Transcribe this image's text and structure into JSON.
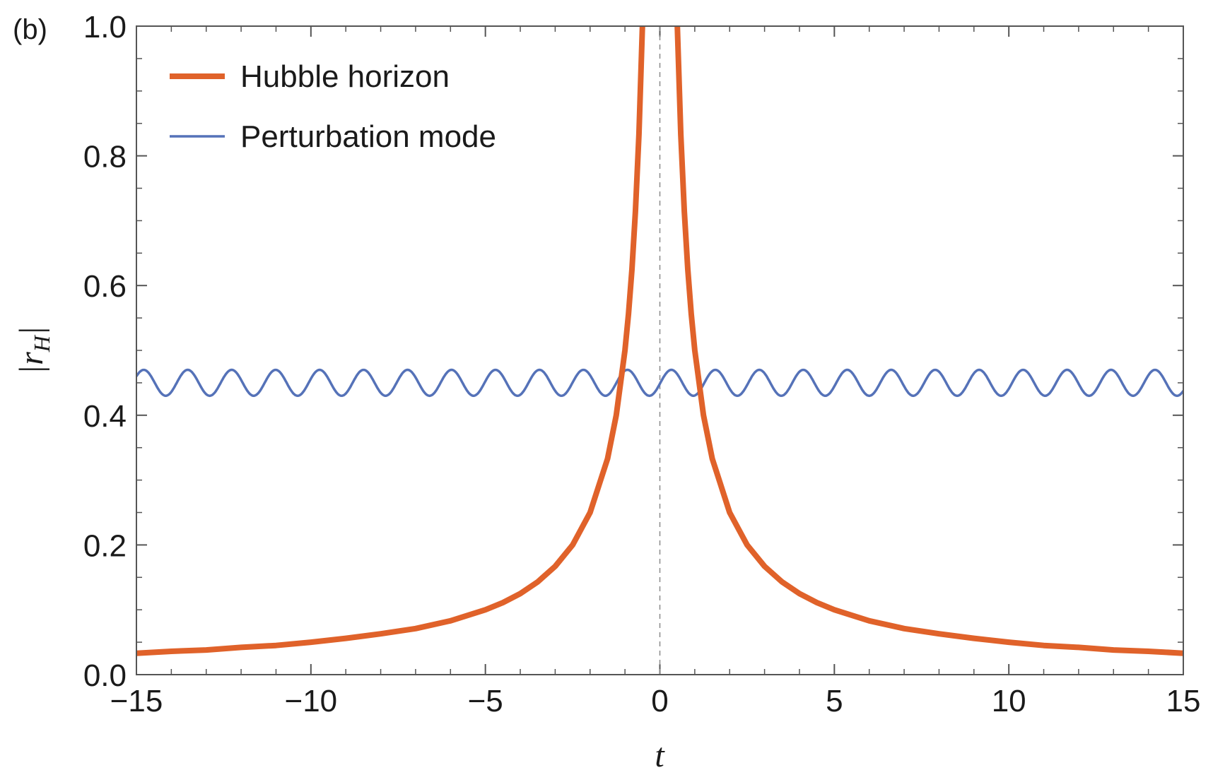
{
  "panel_label": "(b)",
  "chart_data": {
    "type": "line",
    "xlabel": "t",
    "ylabel": "|r_H|",
    "ylabel_main": "|r",
    "ylabel_sub": "H",
    "ylabel_close": "|",
    "xlim": [
      -15,
      15
    ],
    "ylim": [
      0,
      1.0
    ],
    "x_ticks": [
      -15,
      -10,
      -5,
      0,
      5,
      10,
      15
    ],
    "x_tick_labels": [
      "−15",
      "−10",
      "−5",
      "0",
      "5",
      "10",
      "15"
    ],
    "y_ticks": [
      0.0,
      0.2,
      0.4,
      0.6,
      0.8,
      1.0
    ],
    "y_tick_labels": [
      "0.0",
      "0.2",
      "0.4",
      "0.6",
      "0.8",
      "1.0"
    ],
    "grid": false,
    "legend_position": "top-left",
    "vertical_reference_line_x": 0,
    "series": [
      {
        "name": "Hubble horizon",
        "color": "#e0622a",
        "x": [
          -15,
          -14,
          -13,
          -12,
          -11,
          -10,
          -9,
          -8,
          -7,
          -6,
          -5,
          -4.5,
          -4,
          -3.5,
          -3,
          -2.5,
          -2,
          -1.5,
          -1.25,
          -1,
          -0.9,
          -0.8,
          -0.7,
          -0.6,
          -0.5,
          -0.48,
          0.48,
          0.5,
          0.6,
          0.7,
          0.8,
          0.9,
          1,
          1.25,
          1.5,
          2,
          2.5,
          3,
          3.5,
          4,
          4.5,
          5,
          6,
          7,
          8,
          9,
          10,
          11,
          12,
          13,
          14,
          15
        ],
        "y": [
          0.033,
          0.036,
          0.038,
          0.042,
          0.045,
          0.05,
          0.056,
          0.063,
          0.071,
          0.083,
          0.1,
          0.111,
          0.125,
          0.143,
          0.167,
          0.2,
          0.25,
          0.333,
          0.4,
          0.5,
          0.556,
          0.625,
          0.714,
          0.833,
          1.0,
          1.04,
          1.04,
          1.0,
          0.833,
          0.714,
          0.625,
          0.556,
          0.5,
          0.4,
          0.333,
          0.25,
          0.2,
          0.167,
          0.143,
          0.125,
          0.111,
          0.1,
          0.083,
          0.071,
          0.063,
          0.056,
          0.05,
          0.045,
          0.042,
          0.038,
          0.036,
          0.033
        ]
      },
      {
        "name": "Perturbation mode",
        "color": "#5572b8",
        "mean": 0.45,
        "amplitude": 0.02,
        "period": 1.26,
        "x": [
          -15,
          -14.685,
          -14.37,
          -14.055,
          -13.74,
          -13.425,
          -13.11,
          -12.795,
          -12.48,
          -12.165,
          -11.85,
          -11.535,
          -11.22,
          -10.905,
          -10.59,
          -10.275,
          -9.96,
          -9.645,
          -9.33,
          -9.015,
          -8.7,
          -8.385,
          -8.07,
          -7.755,
          -7.44,
          -7.125,
          -6.81,
          -6.495,
          -6.18,
          -5.865,
          -5.55,
          -5.235,
          -4.92,
          -4.605,
          -4.29,
          -3.975,
          -3.66,
          -3.345,
          -3.03,
          -2.715,
          -2.4,
          -2.085,
          -1.77,
          -1.455,
          -1.14,
          -0.825,
          -0.51,
          -0.195,
          0.12,
          0.435,
          0.75,
          1.065,
          1.38,
          1.695,
          2.01,
          2.325,
          2.64,
          2.955,
          3.27,
          3.585,
          3.9,
          4.215,
          4.53,
          4.845,
          5.16,
          5.475,
          5.79,
          6.105,
          6.42,
          6.735,
          7.05,
          7.365,
          7.68,
          7.995,
          8.31,
          8.625,
          8.94,
          9.255,
          9.57,
          9.885,
          10.2,
          10.515,
          10.83,
          11.145,
          11.46,
          11.775,
          12.09,
          12.405,
          12.72,
          13.035,
          13.35,
          13.665,
          13.98,
          14.295,
          14.61,
          14.925,
          15
        ],
        "y": [
          0.46,
          0.47,
          0.45,
          0.43,
          0.45,
          0.47,
          0.45,
          0.43,
          0.45,
          0.47,
          0.45,
          0.43,
          0.45,
          0.47,
          0.45,
          0.43,
          0.45,
          0.47,
          0.45,
          0.43,
          0.45,
          0.47,
          0.45,
          0.43,
          0.45,
          0.47,
          0.45,
          0.43,
          0.45,
          0.47,
          0.45,
          0.43,
          0.45,
          0.47,
          0.45,
          0.43,
          0.45,
          0.47,
          0.45,
          0.43,
          0.45,
          0.47,
          0.45,
          0.43,
          0.45,
          0.47,
          0.45,
          0.43,
          0.45,
          0.47,
          0.45,
          0.43,
          0.45,
          0.47,
          0.45,
          0.43,
          0.45,
          0.47,
          0.45,
          0.43,
          0.45,
          0.47,
          0.45,
          0.43,
          0.45,
          0.47,
          0.45,
          0.43,
          0.45,
          0.47,
          0.45,
          0.43,
          0.45,
          0.47,
          0.45,
          0.43,
          0.45,
          0.47,
          0.45,
          0.43,
          0.45,
          0.47,
          0.45,
          0.43,
          0.45,
          0.47,
          0.45,
          0.43,
          0.45,
          0.47,
          0.45,
          0.43,
          0.45,
          0.47,
          0.45,
          0.43,
          0.44
        ]
      }
    ]
  }
}
